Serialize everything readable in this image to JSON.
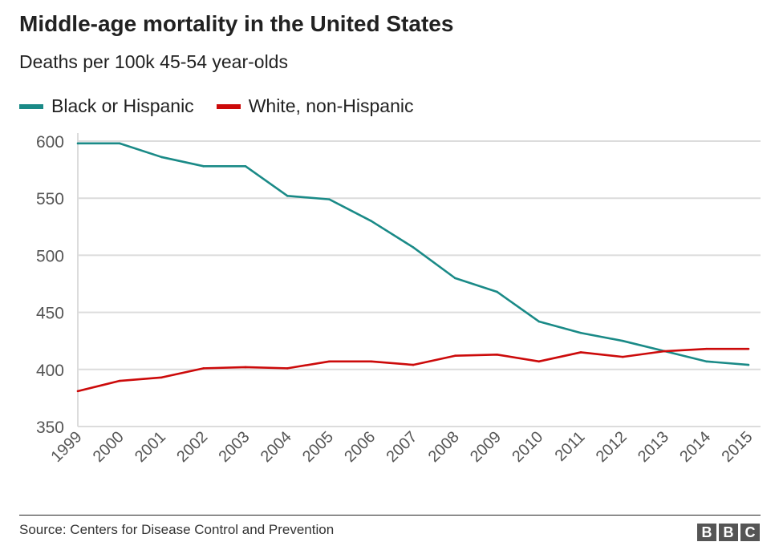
{
  "chart_data": {
    "type": "line",
    "title": "Middle-age mortality in the United States",
    "subtitle": "Deaths per 100k 45-54 year-olds",
    "xlabel": "",
    "ylabel": "",
    "x": [
      "1999",
      "2000",
      "2001",
      "2002",
      "2003",
      "2004",
      "2005",
      "2006",
      "2007",
      "2008",
      "2009",
      "2010",
      "2011",
      "2012",
      "2013",
      "2014",
      "2015"
    ],
    "ylim": [
      350,
      600
    ],
    "yticks": [
      "350",
      "400",
      "450",
      "500",
      "550",
      "600"
    ],
    "grid": true,
    "legend_position": "top-left",
    "series": [
      {
        "name": "Black or Hispanic",
        "color": "#1a8a87",
        "values": [
          598,
          598,
          586,
          578,
          578,
          552,
          549,
          530,
          507,
          480,
          468,
          442,
          432,
          425,
          416,
          407,
          404
        ]
      },
      {
        "name": "White, non-Hispanic",
        "color": "#cc0a0a",
        "values": [
          381,
          390,
          393,
          401,
          402,
          401,
          407,
          407,
          404,
          412,
          413,
          407,
          415,
          411,
          416,
          418,
          418
        ]
      }
    ]
  },
  "footer": {
    "source": "Source: Centers for Disease Control and Prevention",
    "logo": [
      "B",
      "B",
      "C"
    ]
  }
}
